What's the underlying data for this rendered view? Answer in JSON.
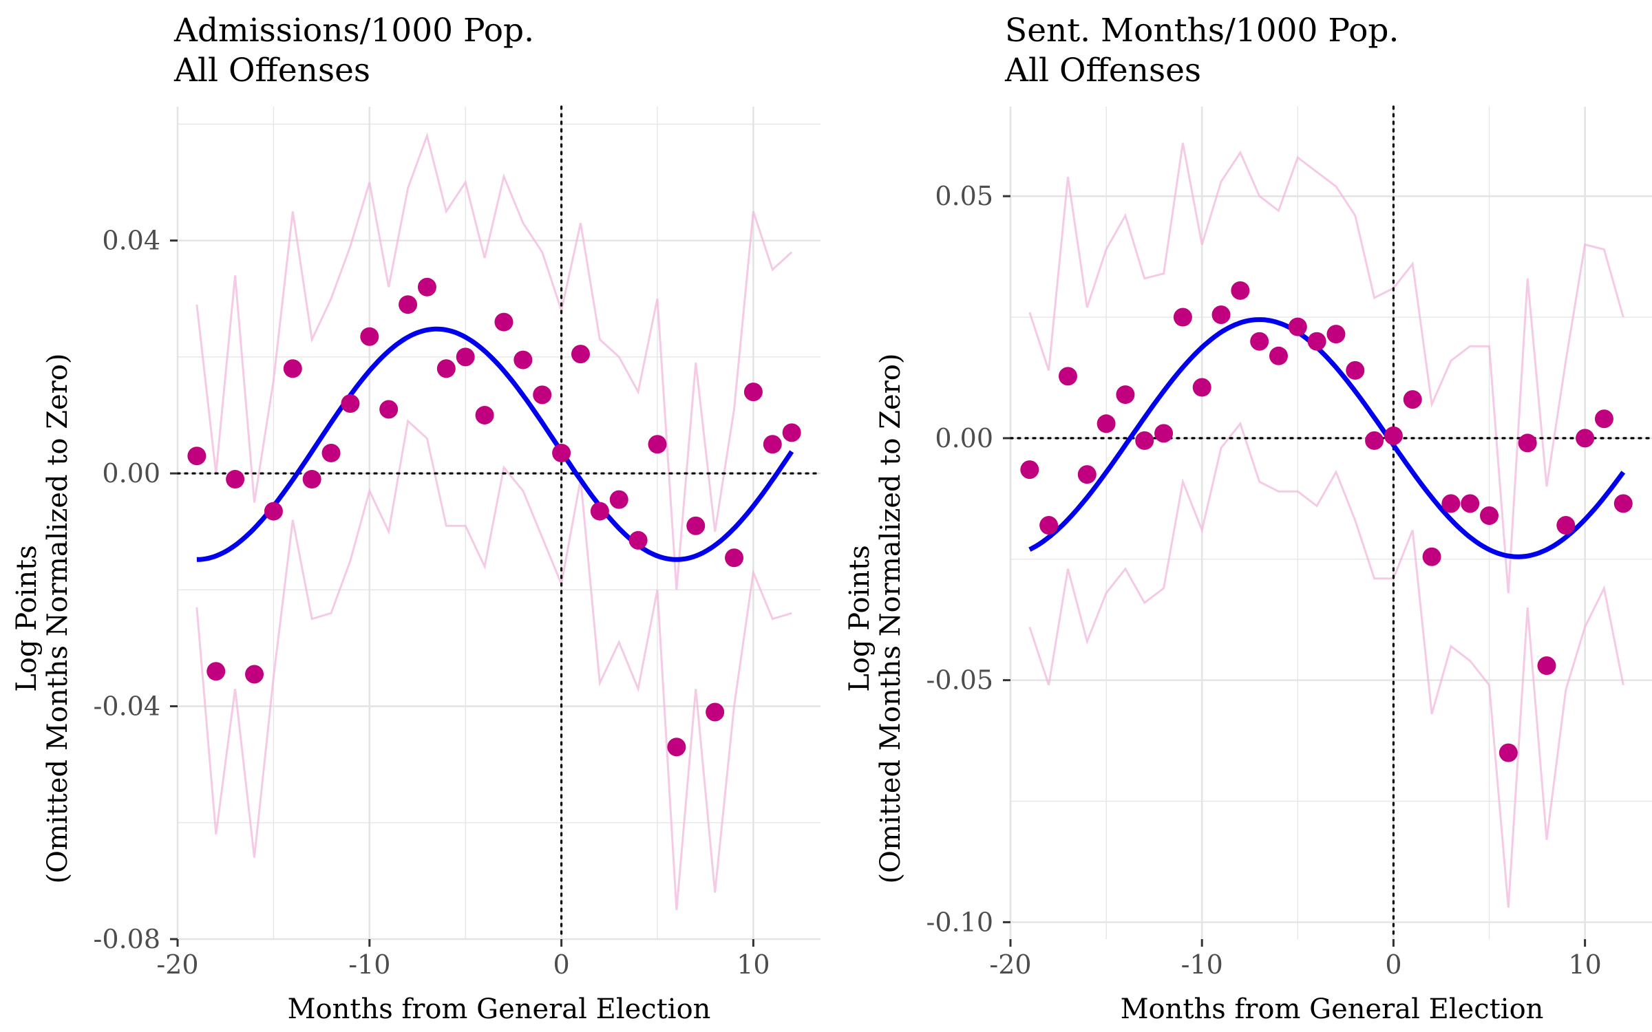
{
  "figure": {
    "background": "#ffffff"
  },
  "style": {
    "point_color": "#c0007f",
    "ci_color": "#f2b8dc",
    "fit_color": "#0000ee",
    "grid_color": "#e4e4e4",
    "reference_color": "#000000"
  },
  "chart_data": [
    {
      "type": "scatter",
      "id": "admissions",
      "title": [
        "Admissions/1000 Pop.",
        "All Offenses"
      ],
      "xlabel": "Months from General Election",
      "ylabel": [
        "Log Points",
        "(Omitted Months Normalized to Zero)"
      ],
      "xlim": [
        -20,
        13.5
      ],
      "ylim": [
        -0.08,
        0.063
      ],
      "xticks": [
        -20,
        -10,
        0,
        10
      ],
      "xtick_labels": [
        "-20",
        "-10",
        "0",
        "10"
      ],
      "yticks": [
        0.04,
        0.0,
        -0.04,
        -0.08
      ],
      "ytick_labels": [
        "0.04",
        "0.00",
        "-0.04",
        "-0.08"
      ],
      "hline": 0,
      "vline": 0,
      "points": {
        "x": [
          -19,
          -18,
          -17,
          -16,
          -15,
          -14,
          -13,
          -12,
          -11,
          -10,
          -9,
          -8,
          -7,
          -6,
          -5,
          -4,
          -3,
          -2,
          -1,
          0,
          1,
          2,
          3,
          4,
          5,
          6,
          7,
          8,
          9,
          10,
          11,
          12
        ],
        "y": [
          0.003,
          -0.034,
          -0.001,
          -0.0345,
          -0.0065,
          0.018,
          -0.001,
          0.0035,
          0.012,
          0.0235,
          0.011,
          0.029,
          0.032,
          0.018,
          0.02,
          0.01,
          0.026,
          0.0195,
          0.0135,
          0.0035,
          0.0205,
          -0.0065,
          -0.0045,
          -0.0115,
          0.005,
          -0.047,
          -0.009,
          -0.041,
          -0.0145,
          0.014,
          0.005,
          0.007
        ]
      },
      "ci_upper": [
        0.029,
        0.0,
        0.034,
        -0.005,
        0.016,
        0.045,
        0.023,
        0.03,
        0.039,
        0.05,
        0.032,
        0.049,
        0.058,
        0.045,
        0.05,
        0.037,
        0.051,
        0.043,
        0.038,
        0.028,
        0.043,
        0.023,
        0.02,
        0.014,
        0.03,
        -0.02,
        0.019,
        -0.01,
        0.011,
        0.045,
        0.035,
        0.038
      ],
      "ci_lower": [
        -0.023,
        -0.062,
        -0.037,
        -0.066,
        -0.035,
        -0.008,
        -0.025,
        -0.024,
        -0.015,
        -0.003,
        -0.01,
        0.009,
        0.006,
        -0.009,
        -0.009,
        -0.016,
        0.001,
        -0.003,
        -0.011,
        -0.019,
        -0.001,
        -0.036,
        -0.029,
        -0.037,
        -0.02,
        -0.075,
        -0.037,
        -0.072,
        -0.04,
        -0.017,
        -0.025,
        -0.024
      ],
      "fit": {
        "type": "cosine",
        "period": 25,
        "peak": -6.5,
        "center": 0.005,
        "amplitude": 0.0198,
        "x_range": [
          -19,
          12
        ]
      }
    },
    {
      "type": "scatter",
      "id": "sentence-months",
      "title": [
        "Sent. Months/1000 Pop.",
        "All Offenses"
      ],
      "xlabel": "Months from General Election",
      "ylabel": [
        "Log Points",
        "(Omitted Months Normalized to Zero)"
      ],
      "xlim": [
        -20,
        13.5
      ],
      "ylim": [
        -0.1035,
        0.0685
      ],
      "xticks": [
        -20,
        -10,
        0,
        10
      ],
      "xtick_labels": [
        "-20",
        "-10",
        "0",
        "10"
      ],
      "yticks": [
        0.05,
        0.0,
        -0.05,
        -0.1
      ],
      "ytick_labels": [
        "0.05",
        "0.00",
        "-0.05",
        "-0.10"
      ],
      "hline": 0,
      "vline": 0,
      "points": {
        "x": [
          -19,
          -18,
          -17,
          -16,
          -15,
          -14,
          -13,
          -12,
          -11,
          -10,
          -9,
          -8,
          -7,
          -6,
          -5,
          -4,
          -3,
          -2,
          -1,
          0,
          1,
          2,
          3,
          4,
          5,
          6,
          7,
          8,
          9,
          10,
          11,
          12
        ],
        "y": [
          -0.0065,
          -0.018,
          0.0128,
          -0.0075,
          0.003,
          0.009,
          -0.0005,
          0.001,
          0.025,
          0.0105,
          0.0255,
          0.0305,
          0.02,
          0.017,
          0.023,
          0.02,
          0.0215,
          0.014,
          -0.0005,
          0.0005,
          0.008,
          -0.0245,
          -0.0135,
          -0.0135,
          -0.016,
          -0.065,
          -0.001,
          -0.047,
          -0.018,
          0.0,
          0.004,
          -0.0135
        ]
      },
      "ci_upper": [
        0.026,
        0.014,
        0.054,
        0.027,
        0.039,
        0.046,
        0.033,
        0.034,
        0.061,
        0.04,
        0.053,
        0.059,
        0.05,
        0.047,
        0.058,
        0.055,
        0.052,
        0.046,
        0.029,
        0.031,
        0.036,
        0.007,
        0.016,
        0.019,
        0.019,
        -0.032,
        0.033,
        -0.01,
        0.016,
        0.04,
        0.039,
        0.025
      ],
      "ci_lower": [
        -0.039,
        -0.051,
        -0.027,
        -0.042,
        -0.032,
        -0.027,
        -0.034,
        -0.031,
        -0.009,
        -0.019,
        -0.002,
        0.003,
        -0.009,
        -0.011,
        -0.011,
        -0.014,
        -0.007,
        -0.017,
        -0.029,
        -0.029,
        -0.019,
        -0.057,
        -0.043,
        -0.046,
        -0.051,
        -0.097,
        -0.035,
        -0.083,
        -0.052,
        -0.039,
        -0.031,
        -0.051
      ],
      "fit": {
        "type": "cosine",
        "period": 27,
        "peak": -7.0,
        "center": 0.0,
        "amplitude": 0.0245,
        "x_range": [
          -19,
          12
        ]
      }
    }
  ]
}
